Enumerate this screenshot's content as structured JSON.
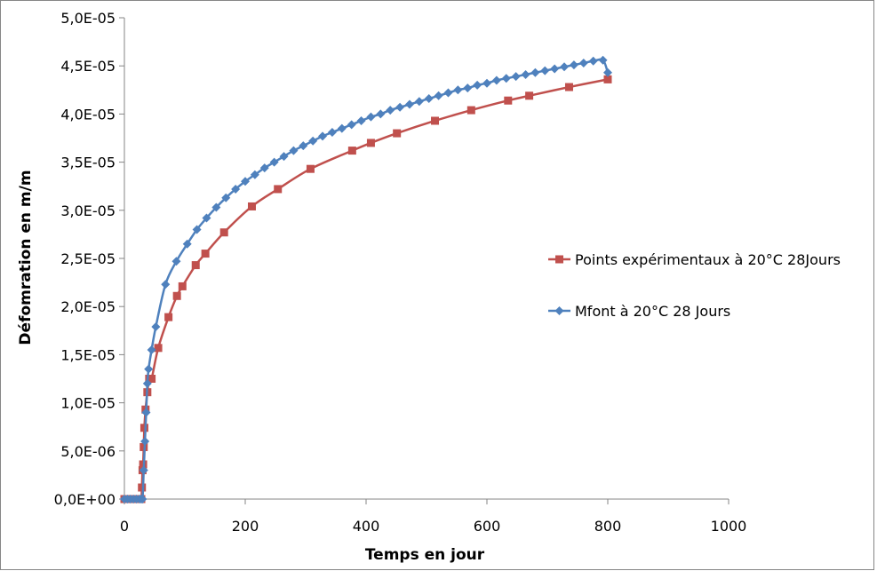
{
  "chart_data": {
    "type": "scatter",
    "xlabel": "Temps en jour",
    "ylabel": "Défomration en m/m",
    "xlim": [
      0,
      1000
    ],
    "ylim": [
      0,
      5e-05
    ],
    "x_ticks": [
      0,
      200,
      400,
      600,
      800,
      1000
    ],
    "x_tick_labels": [
      "0",
      "200",
      "400",
      "600",
      "800",
      "1000"
    ],
    "y_ticks": [
      0,
      5e-06,
      1e-05,
      1.5e-05,
      2e-05,
      2.5e-05,
      3e-05,
      3.5e-05,
      4e-05,
      4.5e-05,
      5e-05
    ],
    "y_tick_labels": [
      "0,0E+00",
      "5,0E-06",
      "1,0E-05",
      "1,5E-05",
      "2,0E-05",
      "2,5E-05",
      "3,0E-05",
      "3,5E-05",
      "4,0E-05",
      "4,5E-05",
      "5,0E-05"
    ],
    "grid": false,
    "legend": "right",
    "series": [
      {
        "name": "Points expérimentaux  à 20°C 28Jours",
        "color": "#C0504D",
        "marker": "square",
        "x": [
          0,
          5,
          10,
          15,
          20,
          25,
          28,
          29,
          30,
          31,
          32,
          33,
          35,
          38,
          41,
          45,
          56,
          73,
          87,
          96,
          118,
          134,
          165,
          211,
          254,
          308,
          377,
          408,
          451,
          514,
          574,
          635,
          670,
          736,
          800
        ],
        "y": [
          0,
          0,
          0,
          0,
          0,
          0,
          0,
          1.2e-06,
          3e-06,
          3.6e-06,
          5.4e-06,
          7.4e-06,
          9.3e-06,
          1.11e-05,
          1.25e-05,
          1.25e-05,
          1.57e-05,
          1.89e-05,
          2.11e-05,
          2.21e-05,
          2.43e-05,
          2.55e-05,
          2.77e-05,
          3.04e-05,
          3.22e-05,
          3.43e-05,
          3.62e-05,
          3.7e-05,
          3.8e-05,
          3.93e-05,
          4.04e-05,
          4.14e-05,
          4.19e-05,
          4.28e-05,
          4.36e-05
        ]
      },
      {
        "name": "Mfont à 20°C 28 Jours",
        "color": "#4F81BD",
        "marker": "diamond",
        "x": [
          0,
          5,
          10,
          15,
          20,
          25,
          28,
          30,
          32,
          34,
          36,
          38,
          40,
          45,
          52,
          68,
          86,
          104,
          120,
          136,
          152,
          168,
          184,
          200,
          216,
          232,
          248,
          264,
          280,
          296,
          312,
          328,
          344,
          360,
          376,
          392,
          408,
          424,
          440,
          456,
          472,
          488,
          504,
          520,
          536,
          552,
          568,
          584,
          600,
          616,
          632,
          648,
          664,
          680,
          696,
          712,
          728,
          744,
          760,
          776,
          792,
          800
        ],
        "y": [
          0,
          0,
          0,
          0,
          0,
          0,
          0,
          0,
          3e-06,
          6e-06,
          9e-06,
          1.2e-05,
          1.35e-05,
          1.55e-05,
          1.79e-05,
          2.23e-05,
          2.47e-05,
          2.65e-05,
          2.8e-05,
          2.92e-05,
          3.03e-05,
          3.13e-05,
          3.22e-05,
          3.3e-05,
          3.37e-05,
          3.44e-05,
          3.5e-05,
          3.56e-05,
          3.62e-05,
          3.67e-05,
          3.72e-05,
          3.77e-05,
          3.81e-05,
          3.85e-05,
          3.89e-05,
          3.93e-05,
          3.97e-05,
          4e-05,
          4.04e-05,
          4.07e-05,
          4.1e-05,
          4.13e-05,
          4.16e-05,
          4.19e-05,
          4.22e-05,
          4.25e-05,
          4.27e-05,
          4.3e-05,
          4.32e-05,
          4.35e-05,
          4.37e-05,
          4.39e-05,
          4.41e-05,
          4.43e-05,
          4.45e-05,
          4.47e-05,
          4.49e-05,
          4.51e-05,
          4.53e-05,
          4.55e-05,
          4.56e-05,
          4.43e-05
        ]
      }
    ]
  }
}
